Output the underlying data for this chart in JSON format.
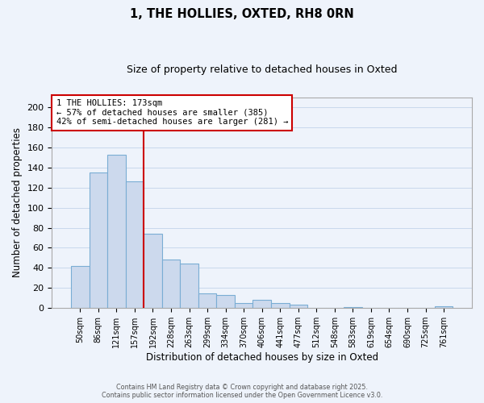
{
  "title": "1, THE HOLLIES, OXTED, RH8 0RN",
  "subtitle": "Size of property relative to detached houses in Oxted",
  "xlabel": "Distribution of detached houses by size in Oxted",
  "ylabel": "Number of detached properties",
  "bar_labels": [
    "50sqm",
    "86sqm",
    "121sqm",
    "157sqm",
    "192sqm",
    "228sqm",
    "263sqm",
    "299sqm",
    "334sqm",
    "370sqm",
    "406sqm",
    "441sqm",
    "477sqm",
    "512sqm",
    "548sqm",
    "583sqm",
    "619sqm",
    "654sqm",
    "690sqm",
    "725sqm",
    "761sqm"
  ],
  "bar_values": [
    42,
    135,
    153,
    126,
    74,
    48,
    44,
    15,
    13,
    5,
    8,
    5,
    3,
    0,
    0,
    1,
    0,
    0,
    0,
    0,
    2
  ],
  "bar_color": "#ccd9ed",
  "bar_edge_color": "#7aadd4",
  "vline_x": 3.5,
  "vline_color": "#cc0000",
  "annotation_title": "1 THE HOLLIES: 173sqm",
  "annotation_line1": "← 57% of detached houses are smaller (385)",
  "annotation_line2": "42% of semi-detached houses are larger (281) →",
  "annotation_box_color": "#cc0000",
  "annotation_bg": "#ffffff",
  "ylim": [
    0,
    210
  ],
  "yticks": [
    0,
    20,
    40,
    60,
    80,
    100,
    120,
    140,
    160,
    180,
    200
  ],
  "footer_line1": "Contains HM Land Registry data © Crown copyright and database right 2025.",
  "footer_line2": "Contains public sector information licensed under the Open Government Licence v3.0.",
  "title_fontsize": 10.5,
  "subtitle_fontsize": 9,
  "grid_color": "#c8d8ec",
  "background_color": "#eef3fb"
}
